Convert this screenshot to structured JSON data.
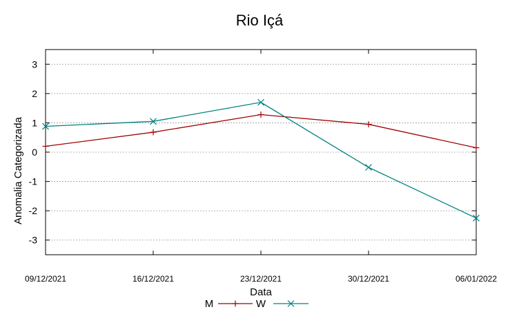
{
  "chart_data": {
    "type": "line",
    "title": "Rio Içá",
    "xlabel": "Data",
    "ylabel": "Anomalia Categorizada",
    "categories": [
      "09/12/2021",
      "16/12/2021",
      "23/12/2021",
      "30/12/2021",
      "06/01/2022"
    ],
    "y_ticks": [
      "3",
      "2",
      "1",
      "0",
      "-1",
      "-2",
      "-3"
    ],
    "ylim": [
      -3.5,
      3.5
    ],
    "grid": true,
    "legend_position": "bottom-center",
    "series": [
      {
        "name": "M",
        "values": [
          0.2,
          0.68,
          1.28,
          0.95,
          0.15
        ],
        "color": "#a00000",
        "marker": "plus"
      },
      {
        "name": "W",
        "values": [
          0.88,
          1.05,
          1.7,
          -0.52,
          -2.25
        ],
        "color": "#008080",
        "marker": "cross"
      }
    ]
  }
}
